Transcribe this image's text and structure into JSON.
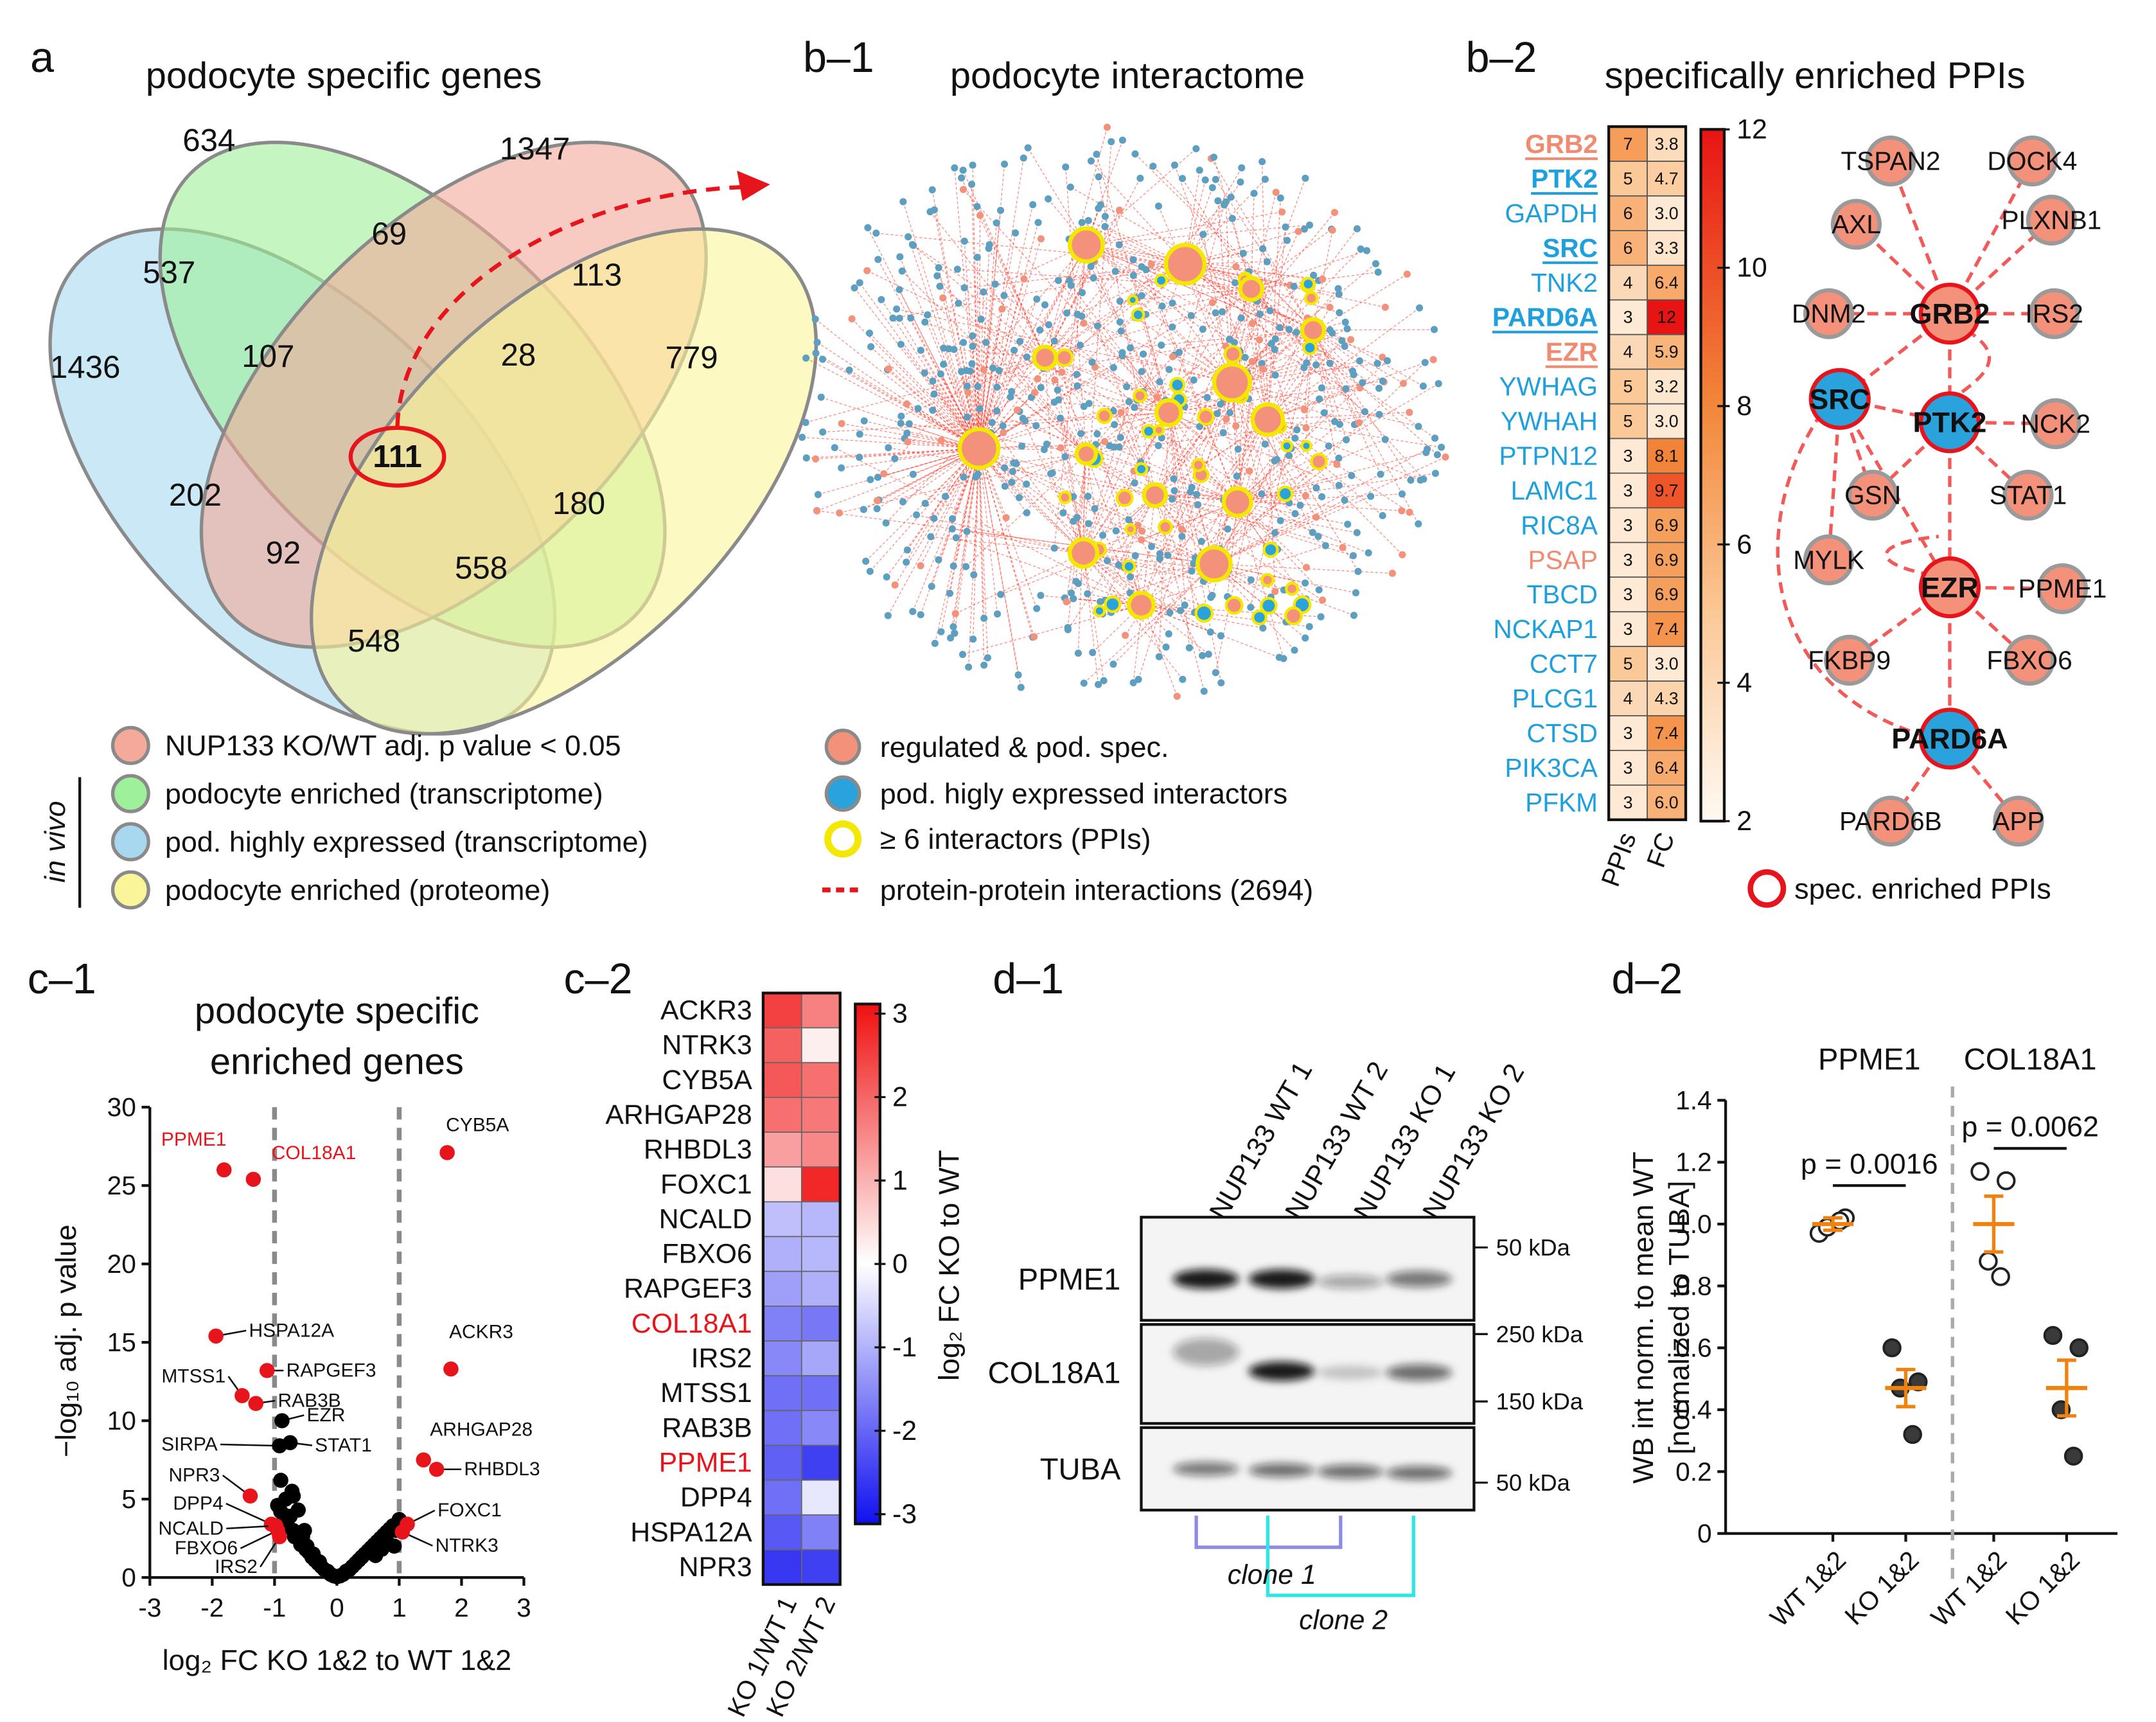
{
  "panel_a": {
    "label": "a",
    "title": "podocyte specific genes",
    "venn_counts": [
      634,
      1347,
      537,
      69,
      113,
      1436,
      107,
      28,
      779,
      111,
      202,
      180,
      92,
      558,
      548
    ],
    "legend": [
      {
        "text": "NUP133 KO/WT adj. p value < 0.05",
        "color": "#f4a99a"
      },
      {
        "text": "podocyte enriched (transcriptome)",
        "color": "#9ff09a"
      },
      {
        "text": "pod. highly expressed (transcriptome)",
        "color": "#a7d8f0"
      },
      {
        "text": "podocyte enriched (proteome)",
        "color": "#fbf59a"
      }
    ],
    "group_label": "in vivo"
  },
  "panel_b1": {
    "label": "b–1",
    "title": "podocyte interactome",
    "legend": [
      "regulated & pod. spec.",
      "pod. higly expressed interactors",
      "≥ 6 interactors (PPIs)",
      "protein-protein interactions (2694)"
    ]
  },
  "panel_b2": {
    "label": "b–2",
    "title": "specifically enriched PPIs",
    "columns": [
      "PPIs",
      "FC"
    ],
    "genes": [
      {
        "name": "GRB2",
        "ppis": 7,
        "fc": 3.8,
        "fc_label": "3.8",
        "color": "#f08a70",
        "emphasis": true
      },
      {
        "name": "PTK2",
        "ppis": 5,
        "fc": 4.7,
        "fc_label": "4.7",
        "color": "#1ea0dc",
        "emphasis": true
      },
      {
        "name": "GAPDH",
        "ppis": 6,
        "fc": 3.0,
        "fc_label": "3.0",
        "color": "#1ea0dc",
        "emphasis": false
      },
      {
        "name": "SRC",
        "ppis": 6,
        "fc": 3.3,
        "fc_label": "3.3",
        "color": "#1ea0dc",
        "emphasis": true
      },
      {
        "name": "TNK2",
        "ppis": 4,
        "fc": 6.4,
        "fc_label": "6.4",
        "color": "#1ea0dc",
        "emphasis": false
      },
      {
        "name": "PARD6A",
        "ppis": 3,
        "fc": 12,
        "fc_label": "12",
        "color": "#1ea0dc",
        "emphasis": true
      },
      {
        "name": "EZR",
        "ppis": 4,
        "fc": 5.9,
        "fc_label": "5.9",
        "color": "#f08a70",
        "emphasis": true
      },
      {
        "name": "YWHAG",
        "ppis": 5,
        "fc": 3.2,
        "fc_label": "3.2",
        "color": "#1ea0dc",
        "emphasis": false
      },
      {
        "name": "YWHAH",
        "ppis": 5,
        "fc": 3.0,
        "fc_label": "3.0",
        "color": "#1ea0dc",
        "emphasis": false
      },
      {
        "name": "PTPN12",
        "ppis": 3,
        "fc": 8.1,
        "fc_label": "8.1",
        "color": "#1ea0dc",
        "emphasis": false
      },
      {
        "name": "LAMC1",
        "ppis": 3,
        "fc": 9.7,
        "fc_label": "9.7",
        "color": "#1ea0dc",
        "emphasis": false
      },
      {
        "name": "RIC8A",
        "ppis": 3,
        "fc": 6.9,
        "fc_label": "6.9",
        "color": "#1ea0dc",
        "emphasis": false
      },
      {
        "name": "PSAP",
        "ppis": 3,
        "fc": 6.9,
        "fc_label": "6.9",
        "color": "#f08a70",
        "emphasis": false
      },
      {
        "name": "TBCD",
        "ppis": 3,
        "fc": 6.9,
        "fc_label": "6.9",
        "color": "#1ea0dc",
        "emphasis": false
      },
      {
        "name": "NCKAP1",
        "ppis": 3,
        "fc": 7.4,
        "fc_label": "7.4",
        "color": "#1ea0dc",
        "emphasis": false
      },
      {
        "name": "CCT7",
        "ppis": 5,
        "fc": 3.0,
        "fc_label": "3.0",
        "color": "#1ea0dc",
        "emphasis": false
      },
      {
        "name": "PLCG1",
        "ppis": 4,
        "fc": 4.3,
        "fc_label": "4.3",
        "color": "#1ea0dc",
        "emphasis": false
      },
      {
        "name": "CTSD",
        "ppis": 3,
        "fc": 7.4,
        "fc_label": "7.4",
        "color": "#1ea0dc",
        "emphasis": false
      },
      {
        "name": "PIK3CA",
        "ppis": 3,
        "fc": 6.4,
        "fc_label": "6.4",
        "color": "#1ea0dc",
        "emphasis": false
      },
      {
        "name": "PFKM",
        "ppis": 3,
        "fc": 6.0,
        "fc_label": "6.0",
        "color": "#1ea0dc",
        "emphasis": false
      }
    ],
    "colorbar_lim": [
      2,
      12
    ],
    "colorbar_ticks": [
      2,
      4,
      6,
      8,
      10,
      12
    ],
    "nodes": [
      {
        "label": "TSPAN2",
        "fill": "#f4917a",
        "ring": false
      },
      {
        "label": "DOCK4",
        "fill": "#f4917a",
        "ring": false
      },
      {
        "label": "AXL",
        "fill": "#f4917a",
        "ring": false
      },
      {
        "label": "PLXNB1",
        "fill": "#f4917a",
        "ring": false
      },
      {
        "label": "DNM2",
        "fill": "#f4917a",
        "ring": false
      },
      {
        "label": "GRB2",
        "fill": "#f4917a",
        "ring": true
      },
      {
        "label": "IRS2",
        "fill": "#f4917a",
        "ring": false
      },
      {
        "label": "SRC",
        "fill": "#2aa3dc",
        "ring": true
      },
      {
        "label": "PTK2",
        "fill": "#2aa3dc",
        "ring": true
      },
      {
        "label": "NCK2",
        "fill": "#f4917a",
        "ring": false
      },
      {
        "label": "GSN",
        "fill": "#f4917a",
        "ring": false
      },
      {
        "label": "STAT1",
        "fill": "#f4917a",
        "ring": false
      },
      {
        "label": "MYLK",
        "fill": "#f4917a",
        "ring": false
      },
      {
        "label": "EZR",
        "fill": "#f4917a",
        "ring": true
      },
      {
        "label": "PPME1",
        "fill": "#f4917a",
        "ring": false
      },
      {
        "label": "FKBP9",
        "fill": "#f4917a",
        "ring": false
      },
      {
        "label": "FBXO6",
        "fill": "#f4917a",
        "ring": false
      },
      {
        "label": "PARD6A",
        "fill": "#2aa3dc",
        "ring": true
      },
      {
        "label": "PARD6B",
        "fill": "#f4917a",
        "ring": false
      },
      {
        "label": "APP",
        "fill": "#f4917a",
        "ring": false
      }
    ],
    "legend": "spec. enriched PPIs"
  },
  "panel_c1": {
    "label": "c–1",
    "chart_data": {
      "type": "scatter",
      "title": [
        "podocyte specific",
        "enriched genes"
      ],
      "xlabel": "log₂ FC KO 1&2 to WT 1&2",
      "ylabel": "−log₁₀ adj. p value",
      "xlim": [
        -3,
        3
      ],
      "xticks": [
        -3,
        -2,
        -1,
        0,
        1,
        2,
        3
      ],
      "ylim": [
        0,
        30
      ],
      "yticks": [
        0,
        5,
        10,
        15,
        20,
        25,
        30
      ],
      "thresholds": [
        -1,
        1
      ],
      "series": [
        {
          "color": "#e8141b",
          "label_color": "#e8141b",
          "x": [
            -1.81,
            -1.34
          ],
          "y": [
            26.0,
            25.4
          ],
          "labels": [
            "PPME1",
            "COL18A1"
          ]
        },
        {
          "color": "#e8141b",
          "label_color": "#111111",
          "x": [
            1.77,
            -1.94,
            -1.12,
            1.83,
            -1.52,
            -1.3,
            1.39,
            1.6,
            -1.39,
            -1.05,
            -0.98,
            -0.95,
            -0.92,
            1.13,
            1.05
          ],
          "y": [
            27.1,
            15.4,
            13.2,
            13.3,
            11.6,
            11.1,
            7.5,
            6.9,
            5.2,
            3.4,
            3.3,
            3.0,
            2.6,
            3.4,
            2.9
          ],
          "labels": [
            "CYB5A",
            "HSPA12A",
            "RAPGEF3",
            "ACKR3",
            "MTSS1",
            "RAB3B",
            "ARHGAP28",
            "RHBDL3",
            "NPR3",
            "DPP4",
            "NCALD",
            "FBXO6",
            "IRS2",
            "FOXC1",
            "NTRK3"
          ]
        },
        {
          "color": "#000000",
          "label_color": "#111111",
          "x": [
            -0.88,
            -0.75,
            -0.92
          ],
          "y": [
            10.0,
            8.6,
            8.4
          ],
          "labels": [
            "EZR",
            "STAT1",
            "SIRPA"
          ]
        },
        {
          "color": "#000000",
          "x": [
            -0.95,
            -0.9,
            -0.85,
            -0.8,
            -0.78,
            -0.75,
            -0.7,
            -0.68,
            -0.65,
            -0.6,
            -0.58,
            -0.55,
            -0.5,
            -0.48,
            -0.45,
            -0.4,
            -0.38,
            -0.35,
            -0.3,
            -0.28,
            -0.25,
            -0.2,
            -0.15,
            -0.1,
            -0.05,
            0,
            0.05,
            0.1,
            0.15,
            0.2,
            0.25,
            0.3,
            0.35,
            0.4,
            0.45,
            0.5,
            0.55,
            0.6,
            0.65,
            0.7,
            0.75,
            0.8,
            0.85,
            0.9,
            0.95,
            1.0,
            -0.82,
            -0.72,
            -0.62,
            -0.52,
            0.62,
            0.72,
            0.82,
            0.92,
            -0.9,
            -0.7
          ],
          "y": [
            4.6,
            4.2,
            4.0,
            3.6,
            3.2,
            3.9,
            3.0,
            2.6,
            2.8,
            2.4,
            2.1,
            2.6,
            1.8,
            2.0,
            1.6,
            1.3,
            1.5,
            1.1,
            0.9,
            1.0,
            0.7,
            0.5,
            0.4,
            0.2,
            0.1,
            0.05,
            0.1,
            0.2,
            0.4,
            0.5,
            0.7,
            0.9,
            1.1,
            1.3,
            1.5,
            1.7,
            1.9,
            2.1,
            2.3,
            2.5,
            2.7,
            2.9,
            3.1,
            3.3,
            3.0,
            3.7,
            5.0,
            5.5,
            4.3,
            3.0,
            1.4,
            1.8,
            2.2,
            2.0,
            6.2,
            5.2
          ]
        }
      ]
    }
  },
  "panel_c2": {
    "label": "c–2",
    "chart_data": {
      "type": "heatmap",
      "columns": [
        "KO 1/WT 1",
        "KO 2/WT 2"
      ],
      "rows": [
        {
          "name": "ACKR3",
          "values": [
            2.4,
            1.6
          ]
        },
        {
          "name": "NTRK3",
          "values": [
            2.0,
            0.2
          ]
        },
        {
          "name": "CYB5A",
          "values": [
            2.1,
            1.8
          ]
        },
        {
          "name": "ARHGAP28",
          "values": [
            1.8,
            1.7
          ]
        },
        {
          "name": "RHBDL3",
          "values": [
            1.2,
            1.5
          ]
        },
        {
          "name": "FOXC1",
          "values": [
            0.4,
            2.7
          ]
        },
        {
          "name": "NCALD",
          "values": [
            -0.8,
            -0.9
          ]
        },
        {
          "name": "FBXO6",
          "values": [
            -1.0,
            -0.9
          ]
        },
        {
          "name": "RAPGEF3",
          "values": [
            -1.2,
            -1.0
          ]
        },
        {
          "name": "COL18A1",
          "values": [
            -1.6,
            -1.7
          ],
          "color": "#e8141b"
        },
        {
          "name": "IRS2",
          "values": [
            -1.5,
            -1.1
          ]
        },
        {
          "name": "MTSS1",
          "values": [
            -1.8,
            -1.8
          ]
        },
        {
          "name": "RAB3B",
          "values": [
            -1.8,
            -1.5
          ]
        },
        {
          "name": "PPME1",
          "values": [
            -2.0,
            -2.4
          ],
          "color": "#e8141b"
        },
        {
          "name": "DPP4",
          "values": [
            -1.8,
            -0.3
          ]
        },
        {
          "name": "HSPA12A",
          "values": [
            -2.1,
            -1.6
          ]
        },
        {
          "name": "NPR3",
          "values": [
            -2.5,
            -2.4
          ]
        }
      ],
      "colorbar_lim": [
        -3,
        3
      ],
      "colorbar_ticks": [
        -3,
        -2,
        -1,
        0,
        1,
        2,
        3
      ],
      "colorbar_label": "log₂ FC KO to WT"
    }
  },
  "panel_d1": {
    "label": "d–1",
    "lanes": [
      "NUP133 WT 1",
      "NUP133 WT 2",
      "NUP133 KO 1",
      "NUP133 KO 2"
    ],
    "blots": [
      {
        "name": "PPME1",
        "markers": [
          "50 kDa"
        ]
      },
      {
        "name": "COL18A1",
        "markers": [
          "250 kDa",
          "150 kDa"
        ]
      },
      {
        "name": "TUBA",
        "markers": [
          "50 kDa"
        ]
      }
    ],
    "clones": [
      "clone 1",
      "clone 2"
    ]
  },
  "panel_d2": {
    "label": "d–2",
    "chart_data": {
      "type": "dot",
      "ylabel": [
        "WB int norm. to mean WT",
        "[normalized to TUBA]"
      ],
      "ylim": [
        0,
        1.4
      ],
      "yticks": [
        0,
        0.2,
        0.4,
        0.6,
        0.8,
        {
          "value": 1,
          "label": "1.0"
        },
        1.2,
        1.4
      ],
      "point_fills": [
        "#ffffff",
        "#3a3a3a"
      ],
      "mean_color": "#f0820f",
      "groups": [
        {
          "name": "PPME1",
          "categories": [
            "WT 1&2",
            "KO 1&2"
          ],
          "points": [
            [
              0.97,
              1.02,
              0.99,
              1.01
            ],
            [
              0.6,
              0.49,
              0.47,
              0.32
            ]
          ],
          "means": [
            1.0,
            0.47
          ],
          "errors": [
            0.02,
            0.06
          ],
          "p_label": "p = 0.0016"
        },
        {
          "name": "COL18A1",
          "categories": [
            "WT 1&2",
            "KO 1&2"
          ],
          "points": [
            [
              1.17,
              1.14,
              0.88,
              0.83
            ],
            [
              0.64,
              0.6,
              0.4,
              0.25
            ]
          ],
          "means": [
            1.0,
            0.47
          ],
          "errors": [
            0.09,
            0.09
          ],
          "p_label": "p = 0.0062"
        }
      ]
    }
  }
}
